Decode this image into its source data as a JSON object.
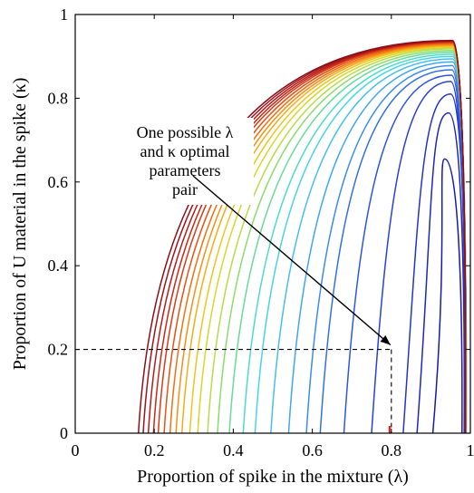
{
  "chart_data": {
    "type": "line",
    "title": "",
    "xlabel": "Proportion of spike in the mixture (λ)",
    "ylabel": "Proportion of U material in the spike (κ)",
    "xlim": [
      0,
      1
    ],
    "ylim": [
      0,
      1
    ],
    "x_ticks": [
      "0",
      "0.2",
      "0.4",
      "0.6",
      "0.8",
      "1"
    ],
    "y_ticks": [
      "0",
      "0.2",
      "0.4",
      "0.6",
      "0.8",
      "1"
    ],
    "grid": false,
    "legend": "none",
    "series_description": "Family of 25 nested level curves from dark blue (innermost) to dark red (outermost)",
    "curves": [
      {
        "x_start": 0.905,
        "peak_x": 0.935,
        "peak_y": 0.655,
        "color": "#1a1aa8"
      },
      {
        "x_start": 0.865,
        "peak_x": 0.945,
        "peak_y": 0.765,
        "color": "#1f27b8"
      },
      {
        "x_start": 0.83,
        "peak_x": 0.95,
        "peak_y": 0.81,
        "color": "#2434c8"
      },
      {
        "x_start": 0.75,
        "peak_x": 0.95,
        "peak_y": 0.84,
        "color": "#2941d8"
      },
      {
        "x_start": 0.68,
        "peak_x": 0.952,
        "peak_y": 0.855,
        "color": "#2e55e3"
      },
      {
        "x_start": 0.62,
        "peak_x": 0.953,
        "peak_y": 0.868,
        "color": "#3270ea"
      },
      {
        "x_start": 0.585,
        "peak_x": 0.954,
        "peak_y": 0.878,
        "color": "#3a8cf0"
      },
      {
        "x_start": 0.54,
        "peak_x": 0.955,
        "peak_y": 0.887,
        "color": "#3fa6f2"
      },
      {
        "x_start": 0.495,
        "peak_x": 0.955,
        "peak_y": 0.894,
        "color": "#44bff0"
      },
      {
        "x_start": 0.455,
        "peak_x": 0.955,
        "peak_y": 0.9,
        "color": "#46d5e6"
      },
      {
        "x_start": 0.425,
        "peak_x": 0.955,
        "peak_y": 0.905,
        "color": "#4cdcc4"
      },
      {
        "x_start": 0.39,
        "peak_x": 0.955,
        "peak_y": 0.91,
        "color": "#66dc9c"
      },
      {
        "x_start": 0.36,
        "peak_x": 0.955,
        "peak_y": 0.914,
        "color": "#8cdc6e"
      },
      {
        "x_start": 0.335,
        "peak_x": 0.955,
        "peak_y": 0.918,
        "color": "#b6dc46"
      },
      {
        "x_start": 0.31,
        "peak_x": 0.955,
        "peak_y": 0.921,
        "color": "#d8d628"
      },
      {
        "x_start": 0.29,
        "peak_x": 0.955,
        "peak_y": 0.924,
        "color": "#f0c41c"
      },
      {
        "x_start": 0.27,
        "peak_x": 0.955,
        "peak_y": 0.926,
        "color": "#f6aa16"
      },
      {
        "x_start": 0.255,
        "peak_x": 0.955,
        "peak_y": 0.928,
        "color": "#f68e14"
      },
      {
        "x_start": 0.24,
        "peak_x": 0.955,
        "peak_y": 0.93,
        "color": "#f07014"
      },
      {
        "x_start": 0.225,
        "peak_x": 0.955,
        "peak_y": 0.932,
        "color": "#e65214"
      },
      {
        "x_start": 0.21,
        "peak_x": 0.955,
        "peak_y": 0.934,
        "color": "#d83a16"
      },
      {
        "x_start": 0.198,
        "peak_x": 0.955,
        "peak_y": 0.935,
        "color": "#c82818"
      },
      {
        "x_start": 0.185,
        "peak_x": 0.955,
        "peak_y": 0.936,
        "color": "#b41c1a"
      },
      {
        "x_start": 0.172,
        "peak_x": 0.955,
        "peak_y": 0.937,
        "color": "#9e141a"
      },
      {
        "x_start": 0.16,
        "peak_x": 0.955,
        "peak_y": 0.938,
        "color": "#8c0f18"
      }
    ],
    "right_edge_x": 0.995,
    "optimal_point": {
      "x": 0.8,
      "y": 0.2
    },
    "marker_color": "#ff0000",
    "annotation": {
      "lines": [
        "One possible λ",
        "and κ optimal",
        "parameters",
        "pair"
      ]
    }
  }
}
